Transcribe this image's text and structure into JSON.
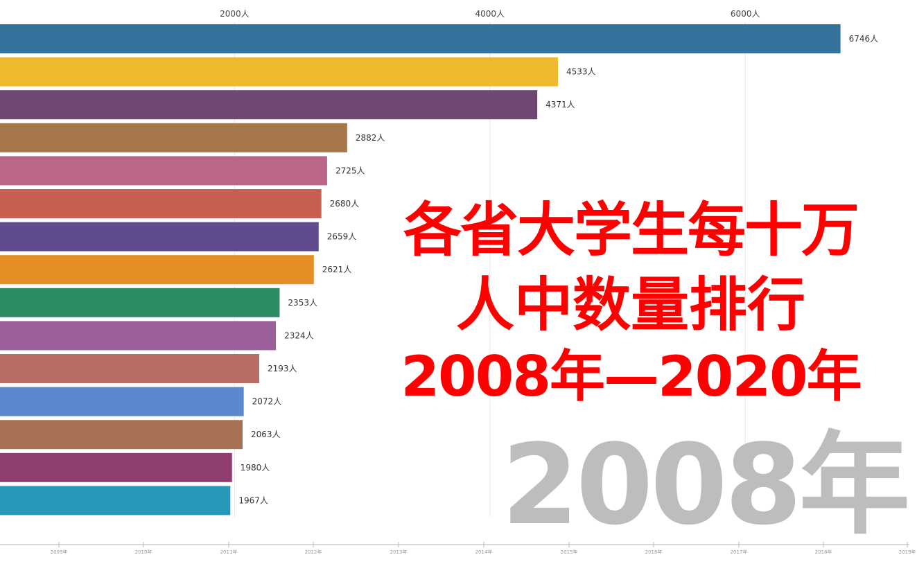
{
  "chart_data": {
    "type": "bar",
    "orientation": "horizontal",
    "title": "各省大学生每十万人中数量排行",
    "subtitle": "2008年—2020年",
    "current_year": "2008年",
    "value_suffix": "人",
    "xlim": [
      0,
      7000
    ],
    "x_ticks": [
      "2000人",
      "4000人",
      "6000人"
    ],
    "x_tick_values": [
      2000,
      4000,
      6000
    ],
    "grid": true,
    "values": [
      6746,
      4533,
      4371,
      2882,
      2725,
      2680,
      2659,
      2621,
      2353,
      2324,
      2193,
      2072,
      2063,
      1980,
      1967
    ],
    "data_labels": [
      "6746人",
      "4533人",
      "4371人",
      "2882人",
      "2725人",
      "2680人",
      "2659人",
      "2621人",
      "2353人",
      "2324人",
      "2193人",
      "2072人",
      "2063人",
      "1980人",
      "1967人"
    ],
    "colors": [
      "#35729c",
      "#efb92e",
      "#6f4872",
      "#a5774a",
      "#bb6689",
      "#c95f51",
      "#5f4b8e",
      "#e58e26",
      "#2b8b63",
      "#9b5f9c",
      "#b96c64",
      "#5d87cc",
      "#a77254",
      "#903f70",
      "#2698ba"
    ],
    "timeline": [
      "2009年",
      "2010年",
      "2011年",
      "2012年",
      "2013年",
      "2014年",
      "2015年",
      "2016年",
      "2017年",
      "2018年",
      "2019年"
    ]
  }
}
